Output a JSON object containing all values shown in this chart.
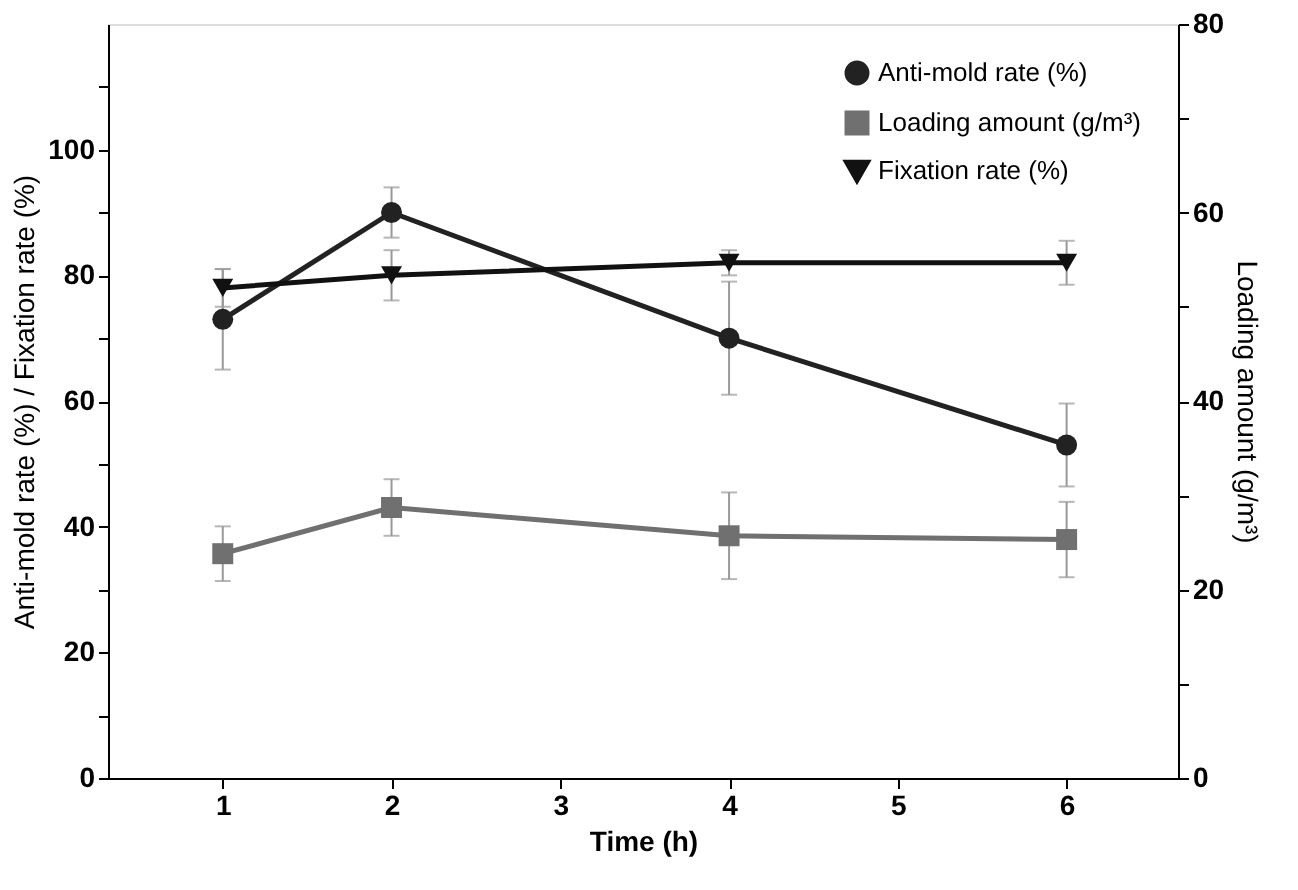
{
  "chart_data": {
    "type": "line",
    "xlabel": "Time (h)",
    "ylabel": "Anti-mold rate (%) / Fixation rate (%)",
    "y2label": "Loading amount (g/m³)",
    "x": [
      1,
      2,
      4,
      6
    ],
    "series": [
      {
        "name": "Anti-mold rate (%)",
        "color": "#222222",
        "marker": "circle",
        "values": [
          73,
          90,
          70,
          53
        ],
        "errors": [
          8,
          4,
          9,
          6.6
        ]
      },
      {
        "name": "Loading amount (g/m³)",
        "color": "#707070",
        "marker": "square",
        "axis": "y2",
        "values": [
          23.8,
          28.7,
          25.7,
          25.3
        ],
        "errors": [
          2.9,
          3,
          4.6,
          4
        ]
      },
      {
        "name": "Fixation rate (%)",
        "color": "#111111",
        "marker": "triangle-down",
        "values": [
          78,
          80,
          82,
          82
        ],
        "errors": [
          3,
          4,
          2,
          3.5
        ]
      }
    ],
    "xlim": [
      0.32,
      6.66
    ],
    "xticks": [
      1,
      2,
      3,
      4,
      5,
      6
    ],
    "ylim": [
      0,
      120
    ],
    "yticks": [
      0,
      {
        "value": 10,
        "label": null
      },
      20,
      {
        "value": 30,
        "label": null
      },
      40,
      {
        "value": 50,
        "label": null
      },
      60,
      {
        "value": 70,
        "label": null
      },
      80,
      {
        "value": 90,
        "label": null
      },
      100,
      {
        "value": 110,
        "label": null
      }
    ],
    "y2lim": [
      0,
      80
    ],
    "y2ticks": [
      0,
      {
        "value": 10,
        "label": null
      },
      20,
      {
        "value": 30,
        "label": null
      },
      40,
      {
        "value": 50,
        "label": null
      },
      60,
      {
        "value": 70,
        "label": null
      },
      80
    ],
    "grid": false,
    "legend": "top right",
    "line_style": "solid"
  }
}
